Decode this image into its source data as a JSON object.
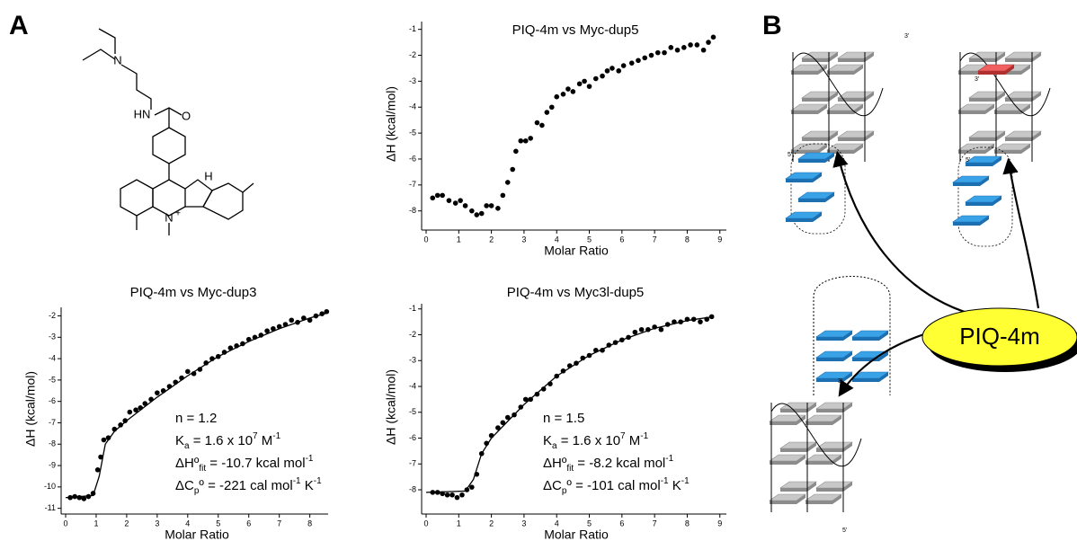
{
  "panels": [
    "A",
    "B"
  ],
  "structure": {
    "atoms": [
      "N",
      "HN",
      "O",
      "H",
      "N",
      "+"
    ]
  },
  "diagram": {
    "strand_labels": [
      "3'",
      "5'",
      "3'",
      "5'",
      "3'",
      "5'"
    ],
    "ligand": "PIQ-4m"
  },
  "chart_data": [
    {
      "type": "scatter",
      "title": "PIQ-4m vs Myc-dup5",
      "x_label": "Molar Ratio",
      "y_label": "ΔH (kcal/mol)",
      "xlim": [
        0,
        9.2
      ],
      "ylim": [
        -8.6,
        -0.7
      ],
      "xticks": [
        0,
        1,
        2,
        3,
        4,
        5,
        6,
        7,
        8,
        9
      ],
      "yticks": [
        -8,
        -7,
        -6,
        -5,
        -4,
        -3,
        -2,
        -1
      ],
      "series": [
        {
          "mode": "markers",
          "color": "#000000",
          "x": [
            0.2,
            0.35,
            0.5,
            0.7,
            0.9,
            1.05,
            1.2,
            1.4,
            1.55,
            1.7,
            1.85,
            2.0,
            2.2,
            2.35,
            2.5,
            2.65,
            2.75,
            2.9,
            3.05,
            3.2,
            3.4,
            3.55,
            3.7,
            3.85,
            4.0,
            4.2,
            4.35,
            4.5,
            4.7,
            4.85,
            5.0,
            5.2,
            5.4,
            5.55,
            5.7,
            5.9,
            6.05,
            6.3,
            6.5,
            6.7,
            6.9,
            7.1,
            7.3,
            7.5,
            7.7,
            7.9,
            8.1,
            8.3,
            8.5,
            8.65,
            8.8
          ],
          "values": [
            -7.5,
            -7.4,
            -7.4,
            -7.6,
            -7.7,
            -7.6,
            -7.8,
            -8.0,
            -8.15,
            -8.1,
            -7.8,
            -7.8,
            -7.9,
            -7.4,
            -6.9,
            -6.4,
            -5.7,
            -5.3,
            -5.3,
            -5.2,
            -4.6,
            -4.7,
            -4.2,
            -4.0,
            -3.6,
            -3.5,
            -3.3,
            -3.4,
            -3.1,
            -3.0,
            -3.2,
            -2.9,
            -2.8,
            -2.6,
            -2.5,
            -2.6,
            -2.4,
            -2.3,
            -2.2,
            -2.1,
            -2.0,
            -1.9,
            -1.9,
            -1.7,
            -1.8,
            -1.7,
            -1.6,
            -1.6,
            -1.8,
            -1.5,
            -1.3
          ]
        }
      ]
    },
    {
      "type": "scatter",
      "title": "PIQ-4m vs Myc-dup3",
      "x_label": "Molar Ratio",
      "y_label": "ΔH (kcal/mol)",
      "xlim": [
        0,
        8.6
      ],
      "ylim": [
        -11.1,
        -1.6
      ],
      "xticks": [
        0,
        1,
        2,
        3,
        4,
        5,
        6,
        7,
        8
      ],
      "yticks": [
        -11,
        -10,
        -9,
        -8,
        -7,
        -6,
        -5,
        -4,
        -3,
        -2
      ],
      "series": [
        {
          "mode": "markers",
          "color": "#000000",
          "x": [
            0.15,
            0.3,
            0.45,
            0.6,
            0.75,
            0.9,
            1.05,
            1.15,
            1.25,
            1.4,
            1.6,
            1.8,
            1.95,
            2.1,
            2.3,
            2.45,
            2.6,
            2.8,
            3.0,
            3.2,
            3.4,
            3.6,
            3.8,
            4.0,
            4.2,
            4.4,
            4.6,
            4.8,
            5.0,
            5.2,
            5.4,
            5.6,
            5.8,
            6.0,
            6.2,
            6.4,
            6.6,
            6.8,
            7.0,
            7.2,
            7.4,
            7.6,
            7.8,
            8.0,
            8.2,
            8.4,
            8.55
          ],
          "values": [
            -10.5,
            -10.45,
            -10.5,
            -10.55,
            -10.45,
            -10.3,
            -9.2,
            -8.6,
            -7.8,
            -7.7,
            -7.3,
            -7.1,
            -6.9,
            -6.5,
            -6.4,
            -6.3,
            -6.1,
            -5.9,
            -5.6,
            -5.5,
            -5.3,
            -5.1,
            -4.9,
            -4.6,
            -4.7,
            -4.5,
            -4.2,
            -4.0,
            -3.9,
            -3.7,
            -3.5,
            -3.4,
            -3.3,
            -3.1,
            -3.0,
            -2.9,
            -2.7,
            -2.6,
            -2.5,
            -2.4,
            -2.2,
            -2.3,
            -2.1,
            -2.2,
            -2.0,
            -1.9,
            -1.8
          ]
        },
        {
          "mode": "line",
          "color": "#000000",
          "x": [
            0,
            0.9,
            1.1,
            1.3,
            1.6,
            2,
            3,
            4,
            5,
            6,
            7,
            8,
            8.6
          ],
          "values": [
            -10.5,
            -10.4,
            -9.5,
            -8.0,
            -7.4,
            -6.9,
            -5.8,
            -4.8,
            -3.9,
            -3.2,
            -2.6,
            -2.1,
            -1.85
          ]
        }
      ],
      "annotations": [
        [
          "n = 1.2"
        ],
        [
          "K",
          {
            "sub": "a"
          },
          " = 1.6 x 10",
          {
            "sup": "7"
          },
          " M",
          {
            "sup": "-1"
          }
        ],
        [
          "ΔHº",
          {
            "sub": "fit"
          },
          " = -10.7 kcal mol",
          {
            "sup": "-1"
          }
        ],
        [
          "ΔC",
          {
            "sub": "p"
          },
          "º = -221 cal mol",
          {
            "sup": "-1"
          },
          " K",
          {
            "sup": "-1"
          }
        ]
      ]
    },
    {
      "type": "scatter",
      "title": "PIQ-4m vs Myc3l-dup5",
      "x_label": "Molar Ratio",
      "y_label": "ΔH (kcal/mol)",
      "xlim": [
        0,
        9.2
      ],
      "ylim": [
        -8.8,
        -0.8
      ],
      "xticks": [
        0,
        1,
        2,
        3,
        4,
        5,
        6,
        7,
        8,
        9
      ],
      "yticks": [
        -8,
        -7,
        -6,
        -5,
        -4,
        -3,
        -2,
        -1
      ],
      "series": [
        {
          "mode": "markers",
          "color": "#000000",
          "x": [
            0.2,
            0.35,
            0.5,
            0.65,
            0.8,
            0.95,
            1.1,
            1.25,
            1.4,
            1.55,
            1.7,
            1.85,
            2.0,
            2.2,
            2.35,
            2.5,
            2.7,
            2.9,
            3.05,
            3.2,
            3.4,
            3.6,
            3.8,
            4.0,
            4.2,
            4.4,
            4.6,
            4.8,
            5.0,
            5.2,
            5.4,
            5.6,
            5.8,
            6.0,
            6.2,
            6.4,
            6.6,
            6.8,
            7.0,
            7.2,
            7.4,
            7.6,
            7.8,
            8.0,
            8.2,
            8.4,
            8.6,
            8.75
          ],
          "values": [
            -8.1,
            -8.1,
            -8.15,
            -8.2,
            -8.2,
            -8.3,
            -8.2,
            -8.0,
            -7.9,
            -7.4,
            -6.6,
            -6.2,
            -5.9,
            -5.6,
            -5.4,
            -5.2,
            -5.1,
            -4.8,
            -4.5,
            -4.5,
            -4.3,
            -4.1,
            -3.9,
            -3.6,
            -3.4,
            -3.2,
            -3.1,
            -2.9,
            -2.8,
            -2.6,
            -2.6,
            -2.4,
            -2.3,
            -2.2,
            -2.1,
            -1.9,
            -1.8,
            -1.8,
            -1.7,
            -1.8,
            -1.6,
            -1.5,
            -1.5,
            -1.4,
            -1.4,
            -1.5,
            -1.4,
            -1.3
          ]
        },
        {
          "mode": "line",
          "color": "#000000",
          "x": [
            0,
            1.2,
            1.45,
            1.7,
            2,
            3,
            4,
            5,
            6,
            7,
            8,
            8.8
          ],
          "values": [
            -8.1,
            -8.05,
            -7.6,
            -6.6,
            -6.0,
            -4.7,
            -3.6,
            -2.8,
            -2.2,
            -1.75,
            -1.45,
            -1.3
          ]
        }
      ],
      "annotations": [
        [
          "n = 1.5"
        ],
        [
          "K",
          {
            "sub": "a"
          },
          " = 1.6 x 10",
          {
            "sup": "7"
          },
          " M",
          {
            "sup": "-1"
          }
        ],
        [
          "ΔHº",
          {
            "sub": "fit"
          },
          " = -8.2 kcal mol",
          {
            "sup": "-1"
          }
        ],
        [
          "ΔC",
          {
            "sub": "p"
          },
          "º = -101 cal mol",
          {
            "sup": "-1"
          },
          " K",
          {
            "sup": "-1"
          }
        ]
      ]
    }
  ]
}
